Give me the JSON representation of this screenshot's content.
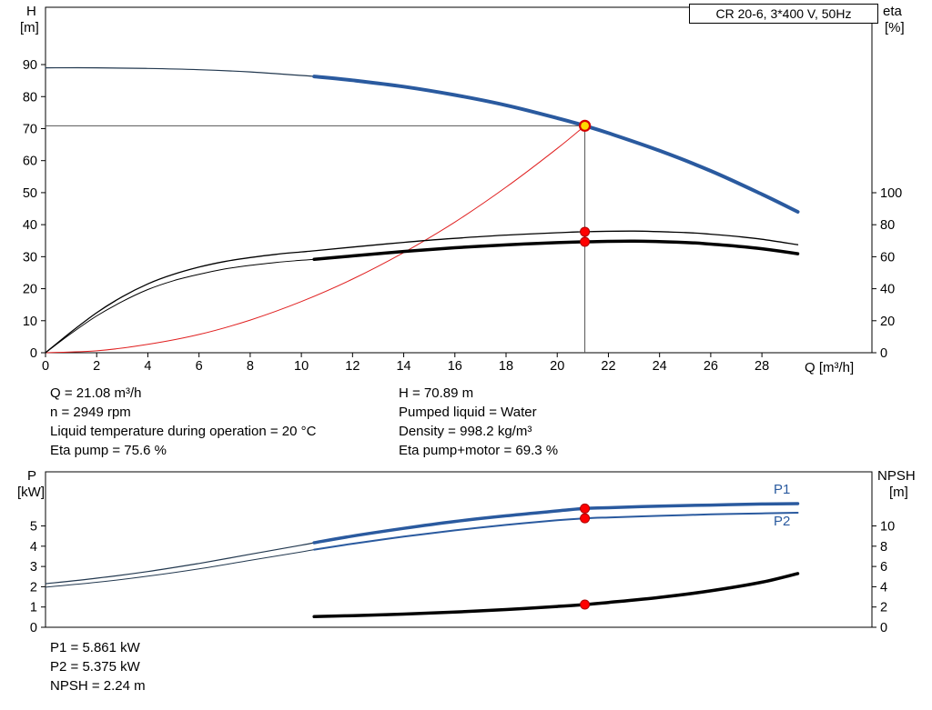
{
  "info_top_left": [
    "Q = 21.08 m³/h",
    "n = 2949 rpm",
    "Liquid temperature during operation = 20 °C",
    "Eta pump = 75.6 %"
  ],
  "info_top_right": [
    "H = 70.89 m",
    "Pumped liquid = Water",
    "Density = 998.2 kg/m³",
    "Eta pump+motor = 69.3 %"
  ],
  "info_bottom": [
    "P1 = 5.861 kW",
    "P2 = 5.375 kW",
    "NPSH = 2.24 m"
  ],
  "colors": {
    "curve_blue": "#2a5a9f",
    "curve_thin": "#22384f",
    "curve_black": "#000000",
    "system_red": "#e02020",
    "dot_red": "#ff0000",
    "dot_edge": "#aa0000",
    "duty_fill": "#ffd800",
    "duty_edge": "#d40000",
    "crosshair": "#555555"
  },
  "chart_data": [
    {
      "type": "line",
      "title": "CR 20-6, 3*400 V, 50Hz",
      "x_axis": {
        "label": "Q [m³/h]",
        "range": [
          0,
          32.3
        ],
        "ticks": [
          0,
          2,
          4,
          6,
          8,
          10,
          12,
          14,
          16,
          18,
          20,
          22,
          24,
          26,
          28
        ],
        "show_labels": true
      },
      "y_left": {
        "name": "H",
        "unit": "[m]",
        "range": [
          0,
          107.9
        ],
        "ticks": [
          0,
          10,
          20,
          30,
          40,
          50,
          60,
          70,
          80,
          90
        ]
      },
      "y_right": {
        "name": "eta",
        "unit": "[%]",
        "range": [
          0,
          215.9
        ],
        "ticks": [
          0,
          20,
          40,
          60,
          80,
          100
        ]
      },
      "grid": false,
      "series": [
        {
          "name": "h-curve-extension",
          "axis": "left",
          "color": "curve_thin",
          "width": 1.2,
          "points": [
            [
              0,
              89
            ],
            [
              2,
              89
            ],
            [
              4,
              88.8
            ],
            [
              6,
              88.4
            ],
            [
              8,
              87.7
            ],
            [
              10,
              86.6
            ],
            [
              10.5,
              86.3
            ]
          ]
        },
        {
          "name": "system-curve",
          "axis": "left",
          "color": "system_red",
          "width": 1,
          "points": [
            [
              0,
              0
            ],
            [
              2,
              0.6
            ],
            [
              4,
              2.6
            ],
            [
              6,
              5.7
            ],
            [
              8,
              10.2
            ],
            [
              10,
              16
            ],
            [
              12,
              23
            ],
            [
              14,
              31.3
            ],
            [
              16,
              40.8
            ],
            [
              18,
              51.7
            ],
            [
              20,
              63.8
            ],
            [
              21.08,
              70.89
            ]
          ]
        },
        {
          "name": "h-curve",
          "axis": "left",
          "color": "curve_blue",
          "width": 4,
          "points": [
            [
              10.5,
              86.3
            ],
            [
              12,
              85.1
            ],
            [
              14,
              83.1
            ],
            [
              16,
              80.5
            ],
            [
              18,
              77.3
            ],
            [
              20,
              73.3
            ],
            [
              21.08,
              70.89
            ],
            [
              22,
              68.6
            ],
            [
              24,
              63.1
            ],
            [
              26,
              56.8
            ],
            [
              28,
              49.5
            ],
            [
              29.4,
              44
            ]
          ]
        },
        {
          "name": "eta-pump-curve",
          "axis": "right",
          "color": "curve_black",
          "width": 1.3,
          "points": [
            [
              0,
              0
            ],
            [
              1,
              13
            ],
            [
              2,
              25
            ],
            [
              3,
              35
            ],
            [
              4,
              43
            ],
            [
              5,
              49
            ],
            [
              6,
              53.5
            ],
            [
              7,
              57
            ],
            [
              8,
              59.5
            ],
            [
              9,
              61.5
            ],
            [
              10,
              63
            ],
            [
              10.5,
              63.7
            ],
            [
              12,
              66
            ],
            [
              14,
              69
            ],
            [
              16,
              71.5
            ],
            [
              18,
              73.5
            ],
            [
              20,
              75
            ],
            [
              21.08,
              75.6
            ],
            [
              23,
              76
            ],
            [
              25,
              75.1
            ],
            [
              26,
              74.1
            ],
            [
              27,
              72.7
            ],
            [
              28,
              70.9
            ],
            [
              29.4,
              67.5
            ]
          ]
        },
        {
          "name": "eta-pump-motor-extension",
          "axis": "right",
          "color": "curve_black",
          "width": 1,
          "points": [
            [
              0,
              0
            ],
            [
              1,
              12
            ],
            [
              2,
              23
            ],
            [
              3,
              32
            ],
            [
              4,
              39.5
            ],
            [
              5,
              45
            ],
            [
              6,
              49
            ],
            [
              7,
              52.3
            ],
            [
              8,
              54.6
            ],
            [
              9,
              56.4
            ],
            [
              10,
              57.8
            ],
            [
              10.5,
              58.4
            ]
          ]
        },
        {
          "name": "eta-pump-motor-curve",
          "axis": "right",
          "color": "curve_black",
          "width": 3.5,
          "points": [
            [
              10.5,
              58.4
            ],
            [
              12,
              60.5
            ],
            [
              14,
              63.3
            ],
            [
              16,
              65.6
            ],
            [
              18,
              67.4
            ],
            [
              20,
              68.8
            ],
            [
              21.08,
              69.3
            ],
            [
              23,
              69.7
            ],
            [
              25,
              68.9
            ],
            [
              26,
              67.9
            ],
            [
              27,
              66.6
            ],
            [
              28,
              65
            ],
            [
              29.4,
              61.9
            ]
          ]
        }
      ],
      "crosshair": {
        "q": 21.08,
        "v": 70.89
      },
      "markers": [
        {
          "q": 21.08,
          "v": 75.6,
          "axis": "right",
          "style": "dot"
        },
        {
          "q": 21.08,
          "v": 69.3,
          "axis": "right",
          "style": "dot"
        },
        {
          "q": 21.08,
          "v": 70.89,
          "axis": "left",
          "style": "duty"
        }
      ]
    },
    {
      "type": "line",
      "title": "",
      "x_axis": {
        "label": "",
        "range": [
          0,
          32.3
        ],
        "ticks": [],
        "show_labels": false
      },
      "y_left": {
        "name": "P",
        "unit": "[kW]",
        "range": [
          0,
          7.67
        ],
        "ticks": [
          0,
          1,
          2,
          3,
          4,
          5
        ]
      },
      "y_right": {
        "name": "NPSH",
        "unit": "[m]",
        "range": [
          0,
          15.34
        ],
        "ticks": [
          0,
          2,
          4,
          6,
          8,
          10
        ]
      },
      "grid": false,
      "curve_labels": {
        "p1": "P1",
        "p2": "P2"
      },
      "series": [
        {
          "name": "p1-curve-extension",
          "axis": "left",
          "color": "curve_thin",
          "width": 1.2,
          "points": [
            [
              0,
              2.15
            ],
            [
              2,
              2.42
            ],
            [
              4,
              2.75
            ],
            [
              6,
              3.15
            ],
            [
              8,
              3.6
            ],
            [
              10,
              4.05
            ],
            [
              10.5,
              4.17
            ]
          ]
        },
        {
          "name": "p2-curve-extension",
          "axis": "left",
          "color": "curve_thin",
          "width": 1,
          "points": [
            [
              0,
              1.98
            ],
            [
              2,
              2.22
            ],
            [
              4,
              2.52
            ],
            [
              6,
              2.88
            ],
            [
              8,
              3.3
            ],
            [
              10,
              3.72
            ],
            [
              10.5,
              3.83
            ]
          ]
        },
        {
          "name": "p1-curve",
          "axis": "left",
          "color": "curve_blue",
          "width": 3.5,
          "points": [
            [
              10.5,
              4.17
            ],
            [
              12,
              4.5
            ],
            [
              14,
              4.88
            ],
            [
              16,
              5.22
            ],
            [
              18,
              5.5
            ],
            [
              20,
              5.74
            ],
            [
              21.08,
              5.861
            ],
            [
              22,
              5.9
            ],
            [
              24,
              5.98
            ],
            [
              26,
              6.03
            ],
            [
              28,
              6.08
            ],
            [
              29.4,
              6.1
            ]
          ]
        },
        {
          "name": "p2-curve",
          "axis": "left",
          "color": "curve_blue",
          "width": 2,
          "points": [
            [
              10.5,
              3.83
            ],
            [
              12,
              4.12
            ],
            [
              14,
              4.47
            ],
            [
              16,
              4.78
            ],
            [
              18,
              5.05
            ],
            [
              20,
              5.28
            ],
            [
              21.08,
              5.375
            ],
            [
              22,
              5.42
            ],
            [
              24,
              5.5
            ],
            [
              26,
              5.57
            ],
            [
              28,
              5.62
            ],
            [
              29.4,
              5.65
            ]
          ]
        },
        {
          "name": "npsh-curve",
          "axis": "right",
          "color": "curve_black",
          "width": 3.5,
          "points": [
            [
              10.5,
              1.05
            ],
            [
              12,
              1.15
            ],
            [
              14,
              1.3
            ],
            [
              16,
              1.5
            ],
            [
              18,
              1.75
            ],
            [
              20,
              2.05
            ],
            [
              21.08,
              2.24
            ],
            [
              22,
              2.45
            ],
            [
              24,
              2.95
            ],
            [
              26,
              3.6
            ],
            [
              28,
              4.45
            ],
            [
              29.4,
              5.3
            ]
          ]
        }
      ],
      "markers": [
        {
          "q": 21.08,
          "v": 5.861,
          "axis": "left",
          "style": "dot"
        },
        {
          "q": 21.08,
          "v": 5.375,
          "axis": "left",
          "style": "dot"
        },
        {
          "q": 21.08,
          "v": 2.24,
          "axis": "right",
          "style": "dot"
        }
      ]
    }
  ]
}
